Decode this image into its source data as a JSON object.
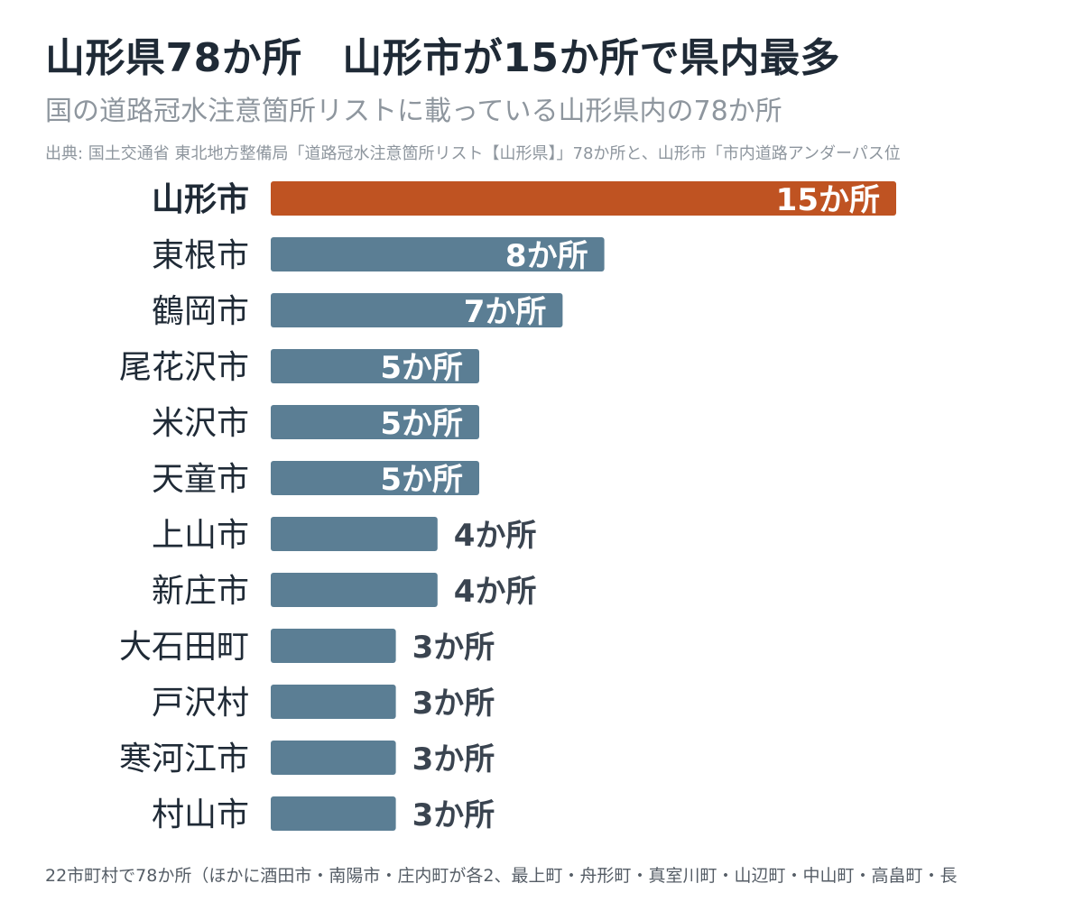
{
  "header": {
    "title": "山形県78か所　山形市が15か所で県内最多",
    "subtitle": "国の道路冠水注意箇所リストに載っている山形県内の78か所",
    "source": "出典: 国土交通省 東北地方整備局「道路冠水注意箇所リスト【山形県】」78か所と、山形市「市内道路アンダーパス位"
  },
  "footnote": "22市町村で78か所（ほかに酒田市・南陽市・庄内町が各2、最上町・舟形町・真室川町・山辺町・中山町・高畠町・長",
  "colors": {
    "highlight": "#bf5322",
    "default": "#5b7e94",
    "label_inside": "#ffffff",
    "label_outside": "#3a4450",
    "category": "#1f2a36"
  },
  "chart_data": {
    "type": "bar",
    "orientation": "horizontal",
    "unit_suffix": "か所",
    "highlight_category": "山形市",
    "xlim": [
      0,
      15
    ],
    "categories": [
      "山形市",
      "東根市",
      "鶴岡市",
      "尾花沢市",
      "米沢市",
      "天童市",
      "上山市",
      "新庄市",
      "大石田町",
      "戸沢村",
      "寒河江市",
      "村山市"
    ],
    "values": [
      15,
      8,
      7,
      5,
      5,
      5,
      4,
      4,
      3,
      3,
      3,
      3
    ],
    "value_labels": [
      "15か所",
      "8か所",
      "7か所",
      "5か所",
      "5か所",
      "5か所",
      "4か所",
      "4か所",
      "3か所",
      "3か所",
      "3か所",
      "3か所"
    ]
  }
}
